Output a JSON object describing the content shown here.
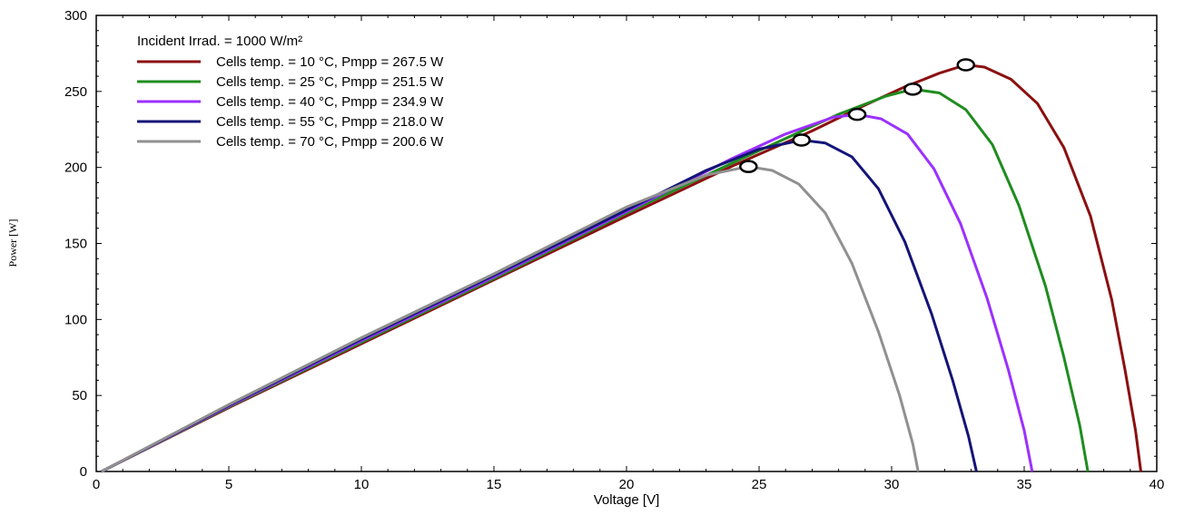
{
  "chart_data": {
    "type": "line",
    "title": "",
    "xlabel": "Voltage [V]",
    "ylabel": "Power [W]",
    "xlim": [
      0,
      40
    ],
    "ylim": [
      0,
      300
    ],
    "xticks": [
      0,
      5,
      10,
      15,
      20,
      25,
      30,
      35,
      40
    ],
    "yticks": [
      0,
      50,
      100,
      150,
      200,
      250,
      300
    ],
    "grid": false,
    "legend_position": "top-left",
    "legend_header": "Incident Irrad. = 1000 W/m²",
    "series": [
      {
        "name": "Cells temp. = 10 °C,  Pmpp = 267.5 W",
        "color": "#8b1010",
        "mpp": [
          32.8,
          267.5
        ],
        "points": [
          [
            0.2,
            0
          ],
          [
            5,
            42
          ],
          [
            10,
            84
          ],
          [
            15,
            126
          ],
          [
            20,
            168
          ],
          [
            24,
            201
          ],
          [
            27,
            224
          ],
          [
            29,
            241
          ],
          [
            30.5,
            253
          ],
          [
            31.8,
            262
          ],
          [
            32.8,
            267.5
          ],
          [
            33.5,
            266
          ],
          [
            34.5,
            258
          ],
          [
            35.5,
            242
          ],
          [
            36.5,
            213
          ],
          [
            37.5,
            168
          ],
          [
            38.3,
            113
          ],
          [
            38.8,
            67
          ],
          [
            39.2,
            27
          ],
          [
            39.4,
            0
          ]
        ]
      },
      {
        "name": "Cells temp. = 25 °C,  Pmpp = 251.5 W",
        "color": "#1f8c1f",
        "mpp": [
          30.8,
          251.5
        ],
        "points": [
          [
            0.2,
            0
          ],
          [
            5,
            42.5
          ],
          [
            10,
            85
          ],
          [
            15,
            127
          ],
          [
            20,
            170
          ],
          [
            24,
            203
          ],
          [
            26,
            219
          ],
          [
            28,
            235
          ],
          [
            29.8,
            247
          ],
          [
            30.8,
            251.5
          ],
          [
            31.8,
            249
          ],
          [
            32.8,
            238
          ],
          [
            33.8,
            215
          ],
          [
            34.8,
            175
          ],
          [
            35.8,
            122
          ],
          [
            36.5,
            75
          ],
          [
            37.1,
            30
          ],
          [
            37.4,
            0
          ]
        ]
      },
      {
        "name": "Cells temp. = 40 °C,  Pmpp = 234.9 W",
        "color": "#9b30ff",
        "mpp": [
          28.7,
          234.9
        ],
        "points": [
          [
            0.2,
            0
          ],
          [
            5,
            43
          ],
          [
            10,
            86
          ],
          [
            15,
            128
          ],
          [
            20,
            171
          ],
          [
            24,
            206
          ],
          [
            26,
            222
          ],
          [
            27.8,
            233
          ],
          [
            28.7,
            234.9
          ],
          [
            29.6,
            232
          ],
          [
            30.6,
            222
          ],
          [
            31.6,
            199
          ],
          [
            32.6,
            163
          ],
          [
            33.6,
            114
          ],
          [
            34.4,
            67
          ],
          [
            35,
            27
          ],
          [
            35.3,
            0
          ]
        ]
      },
      {
        "name": "Cells temp. = 55 °C,  Pmpp = 218.0 W",
        "color": "#141478",
        "mpp": [
          26.6,
          218.0
        ],
        "points": [
          [
            0.2,
            0
          ],
          [
            5,
            43.5
          ],
          [
            10,
            87
          ],
          [
            15,
            129
          ],
          [
            20,
            172
          ],
          [
            23,
            198
          ],
          [
            25,
            212
          ],
          [
            26.6,
            218
          ],
          [
            27.5,
            216
          ],
          [
            28.5,
            207
          ],
          [
            29.5,
            186
          ],
          [
            30.5,
            151
          ],
          [
            31.5,
            104
          ],
          [
            32.3,
            60
          ],
          [
            32.9,
            23
          ],
          [
            33.2,
            0
          ]
        ]
      },
      {
        "name": "Cells temp. = 70 °C,  Pmpp = 200.6 W",
        "color": "#909090",
        "mpp": [
          24.6,
          200.6
        ],
        "points": [
          [
            0.2,
            0
          ],
          [
            5,
            44
          ],
          [
            10,
            88
          ],
          [
            15,
            130
          ],
          [
            20,
            174
          ],
          [
            23,
            195
          ],
          [
            24.6,
            200.6
          ],
          [
            25.5,
            198
          ],
          [
            26.5,
            189
          ],
          [
            27.5,
            170
          ],
          [
            28.5,
            137
          ],
          [
            29.5,
            92
          ],
          [
            30.3,
            50
          ],
          [
            30.8,
            18
          ],
          [
            31.0,
            0
          ]
        ]
      }
    ]
  }
}
